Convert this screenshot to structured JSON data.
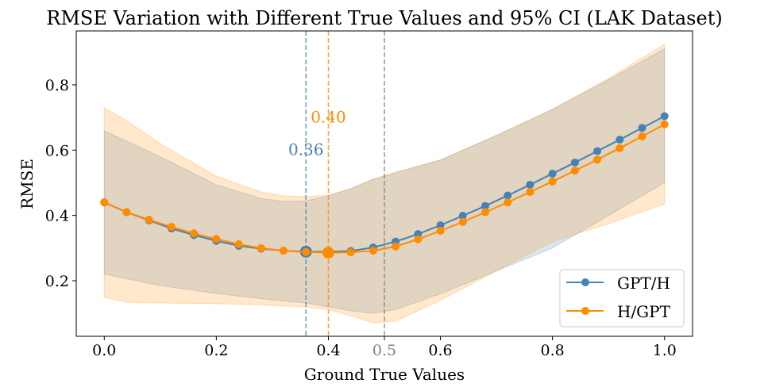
{
  "chart_data": {
    "type": "line",
    "title": "RMSE Variation with Different True Values and 95% CI (LAK Dataset)",
    "xlabel": "Ground True Values",
    "ylabel": "RMSE",
    "xlim": [
      -0.05,
      1.05
    ],
    "ylim": [
      0.03,
      0.965
    ],
    "grid": false,
    "legend_position": "bottom-right",
    "x_ticks": [
      0.0,
      0.2,
      0.4,
      0.5,
      0.6,
      0.8,
      1.0
    ],
    "x_tick_labels": [
      "0.0",
      "0.2",
      "0.4",
      "0.5",
      "0.6",
      "0.8",
      "1.0"
    ],
    "y_ticks": [
      0.2,
      0.4,
      0.6,
      0.8
    ],
    "y_tick_labels": [
      "0.2",
      "0.4",
      "0.6",
      "0.8"
    ],
    "x": [
      0.0,
      0.04,
      0.08,
      0.12,
      0.16,
      0.2,
      0.24,
      0.28,
      0.32,
      0.36,
      0.4,
      0.44,
      0.48,
      0.52,
      0.56,
      0.6,
      0.64,
      0.68,
      0.72,
      0.76,
      0.8,
      0.84,
      0.88,
      0.92,
      0.96,
      1.0
    ],
    "series": [
      {
        "name": "GPT/H",
        "color": "#4682b4",
        "values": [
          0.44,
          0.41,
          0.385,
          0.36,
          0.34,
          0.322,
          0.307,
          0.298,
          0.292,
          0.289,
          0.289,
          0.291,
          0.302,
          0.32,
          0.343,
          0.37,
          0.399,
          0.429,
          0.461,
          0.494,
          0.528,
          0.562,
          0.597,
          0.632,
          0.668,
          0.704
        ],
        "ci_x": [
          0.0,
          0.1,
          0.2,
          0.28,
          0.32,
          0.36,
          0.4,
          0.44,
          0.48,
          0.52,
          0.6,
          0.7,
          0.8,
          0.9,
          1.0
        ],
        "ci_upper": [
          0.659,
          0.58,
          0.494,
          0.452,
          0.443,
          0.445,
          0.46,
          0.482,
          0.511,
          0.53,
          0.57,
          0.645,
          0.725,
          0.815,
          0.91
        ],
        "ci_lower": [
          0.22,
          0.185,
          0.161,
          0.145,
          0.138,
          0.132,
          0.12,
          0.108,
          0.1,
          0.112,
          0.16,
          0.23,
          0.3,
          0.4,
          0.5
        ],
        "optimum_x": 0.36,
        "optimum_label": "0.36"
      },
      {
        "name": "H/GPT",
        "color": "#ff8c00",
        "values": [
          0.44,
          0.41,
          0.387,
          0.365,
          0.345,
          0.328,
          0.312,
          0.3,
          0.292,
          0.288,
          0.286,
          0.287,
          0.292,
          0.305,
          0.327,
          0.353,
          0.38,
          0.41,
          0.44,
          0.472,
          0.504,
          0.537,
          0.571,
          0.606,
          0.642,
          0.679
        ],
        "ci_x": [
          0.0,
          0.04,
          0.1,
          0.2,
          0.28,
          0.32,
          0.36,
          0.4,
          0.44,
          0.48,
          0.52,
          0.6,
          0.7,
          0.8,
          0.9,
          1.0
        ],
        "ci_upper": [
          0.73,
          0.69,
          0.62,
          0.52,
          0.472,
          0.46,
          0.458,
          0.462,
          0.482,
          0.511,
          0.533,
          0.57,
          0.645,
          0.725,
          0.82,
          0.924
        ],
        "ci_lower": [
          0.149,
          0.134,
          0.132,
          0.13,
          0.126,
          0.123,
          0.12,
          0.112,
          0.093,
          0.071,
          0.076,
          0.14,
          0.23,
          0.32,
          0.375,
          0.435
        ],
        "optimum_x": 0.4,
        "optimum_label": "0.40"
      }
    ],
    "reference_line": {
      "x": 0.5,
      "color": "#808080"
    }
  }
}
